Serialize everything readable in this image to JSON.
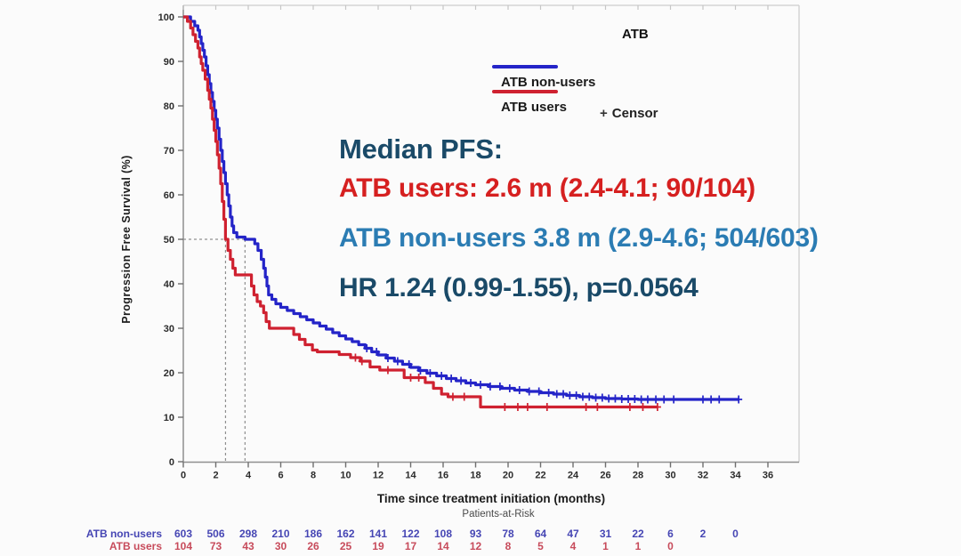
{
  "chart_data": {
    "type": "line",
    "subtype": "kaplan-meier-step",
    "title": "",
    "xlabel": "Time since treatment initiation (months)",
    "ylabel": "Progression Free Survival (%)",
    "xlim": [
      0,
      36
    ],
    "ylim": [
      0,
      100
    ],
    "xticks": [
      0,
      2,
      4,
      6,
      8,
      10,
      12,
      14,
      16,
      18,
      20,
      22,
      24,
      26,
      28,
      30,
      32,
      34,
      36
    ],
    "yticks": [
      0,
      10,
      20,
      30,
      40,
      50,
      60,
      70,
      80,
      90,
      100
    ],
    "grid": false,
    "legend_position": "top-right",
    "median_lines": {
      "y": 50,
      "x": [
        2.6,
        3.8
      ],
      "style": "dashed",
      "color": "#8f8f8f"
    },
    "series": [
      {
        "name": "ATB non-users",
        "color": "#2424c8",
        "points": [
          [
            0,
            100
          ],
          [
            0.45,
            99
          ],
          [
            0.7,
            98
          ],
          [
            0.9,
            97
          ],
          [
            1.0,
            95.5
          ],
          [
            1.1,
            94
          ],
          [
            1.2,
            92.5
          ],
          [
            1.3,
            91
          ],
          [
            1.4,
            89
          ],
          [
            1.5,
            87
          ],
          [
            1.6,
            85
          ],
          [
            1.7,
            83
          ],
          [
            1.8,
            81
          ],
          [
            1.9,
            79
          ],
          [
            2.0,
            77
          ],
          [
            2.1,
            75
          ],
          [
            2.2,
            72.5
          ],
          [
            2.3,
            70
          ],
          [
            2.4,
            67.5
          ],
          [
            2.5,
            65
          ],
          [
            2.6,
            62.5
          ],
          [
            2.7,
            60
          ],
          [
            2.8,
            57.5
          ],
          [
            2.9,
            55
          ],
          [
            3.0,
            53
          ],
          [
            3.1,
            51.5
          ],
          [
            3.3,
            50.5
          ],
          [
            3.8,
            50
          ],
          [
            4.4,
            49
          ],
          [
            4.6,
            47.5
          ],
          [
            4.8,
            45.5
          ],
          [
            4.95,
            43.5
          ],
          [
            5.05,
            41.5
          ],
          [
            5.15,
            39.5
          ],
          [
            5.25,
            37.5
          ],
          [
            5.45,
            36.5
          ],
          [
            5.7,
            35.5
          ],
          [
            6.0,
            34.7
          ],
          [
            6.4,
            34
          ],
          [
            6.8,
            33.3
          ],
          [
            7.2,
            32.6
          ],
          [
            7.6,
            31.9
          ],
          [
            8.0,
            31.2
          ],
          [
            8.4,
            30.5
          ],
          [
            8.8,
            29.8
          ],
          [
            9.2,
            29
          ],
          [
            9.6,
            28.3
          ],
          [
            10.0,
            27.6
          ],
          [
            10.4,
            27
          ],
          [
            10.8,
            26.3
          ],
          [
            11.2,
            25.5
          ],
          [
            11.6,
            24.7
          ],
          [
            12.0,
            24
          ],
          [
            12.5,
            23.3
          ],
          [
            13.0,
            22.6
          ],
          [
            13.5,
            21.9
          ],
          [
            14.0,
            21.2
          ],
          [
            14.5,
            20.5
          ],
          [
            15.0,
            19.9
          ],
          [
            15.6,
            19.3
          ],
          [
            16.2,
            18.7
          ],
          [
            16.8,
            18.2
          ],
          [
            17.4,
            17.7
          ],
          [
            18.0,
            17.3
          ],
          [
            18.8,
            16.9
          ],
          [
            19.6,
            16.5
          ],
          [
            20.4,
            16.1
          ],
          [
            21.2,
            15.8
          ],
          [
            22.0,
            15.5
          ],
          [
            22.8,
            15.2
          ],
          [
            23.6,
            14.9
          ],
          [
            24.4,
            14.6
          ],
          [
            25.2,
            14.4
          ],
          [
            26.0,
            14.2
          ],
          [
            27.0,
            14.1
          ],
          [
            28.0,
            14.0
          ],
          [
            34.2,
            14.0
          ]
        ],
        "censor_times": [
          11.3,
          11.9,
          12.6,
          13.2,
          13.9,
          14.6,
          15.2,
          15.9,
          16.5,
          17.1,
          17.7,
          18.3,
          18.9,
          19.5,
          20.1,
          20.7,
          21.3,
          21.9,
          22.5,
          23.0,
          23.4,
          23.8,
          24.2,
          24.6,
          25.0,
          25.4,
          25.8,
          26.2,
          26.6,
          27.0,
          27.4,
          27.8,
          28.2,
          28.6,
          29.1,
          29.6,
          30.2,
          32.0,
          32.5,
          33.0,
          34.2
        ]
      },
      {
        "name": "ATB users",
        "color": "#cf2130",
        "points": [
          [
            0,
            100
          ],
          [
            0.25,
            99
          ],
          [
            0.45,
            97.5
          ],
          [
            0.6,
            96
          ],
          [
            0.75,
            94.5
          ],
          [
            0.9,
            93
          ],
          [
            1.0,
            91
          ],
          [
            1.1,
            89.5
          ],
          [
            1.2,
            88
          ],
          [
            1.35,
            86
          ],
          [
            1.5,
            83.5
          ],
          [
            1.6,
            81.5
          ],
          [
            1.7,
            79.5
          ],
          [
            1.8,
            77
          ],
          [
            1.9,
            74.5
          ],
          [
            2.0,
            72
          ],
          [
            2.1,
            69
          ],
          [
            2.2,
            66
          ],
          [
            2.3,
            62.5
          ],
          [
            2.4,
            58.5
          ],
          [
            2.5,
            54.5
          ],
          [
            2.6,
            50
          ],
          [
            2.75,
            47.5
          ],
          [
            2.9,
            45.5
          ],
          [
            3.05,
            43.5
          ],
          [
            3.2,
            42
          ],
          [
            4.2,
            39.5
          ],
          [
            4.35,
            37.5
          ],
          [
            4.55,
            36
          ],
          [
            4.75,
            35
          ],
          [
            4.95,
            33.5
          ],
          [
            5.1,
            31.5
          ],
          [
            5.3,
            30
          ],
          [
            6.8,
            28.6
          ],
          [
            7.15,
            27.5
          ],
          [
            7.5,
            26.3
          ],
          [
            7.95,
            25.1
          ],
          [
            8.25,
            24.7
          ],
          [
            9.6,
            24.1
          ],
          [
            10.3,
            23.4
          ],
          [
            10.9,
            22.6
          ],
          [
            11.5,
            21.3
          ],
          [
            12.1,
            20.6
          ],
          [
            13.6,
            18.9
          ],
          [
            14.9,
            17.8
          ],
          [
            15.4,
            16.5
          ],
          [
            15.9,
            15.2
          ],
          [
            16.3,
            14.6
          ],
          [
            18.3,
            12.3
          ],
          [
            29.2,
            12.3
          ]
        ],
        "censor_times": [
          10.6,
          11.0,
          12.6,
          14.0,
          14.5,
          16.6,
          17.3,
          19.8,
          20.6,
          21.2,
          22.4,
          24.8,
          25.5,
          27.5,
          28.3,
          29.2
        ]
      }
    ]
  },
  "legend": {
    "title": "ATB",
    "items": [
      {
        "label": "ATB non-users",
        "color": "#2424c8"
      },
      {
        "label": "ATB users",
        "color": "#cf2130"
      }
    ],
    "censor_plus": "+",
    "censor_label": "Censor"
  },
  "annotations": {
    "median_label": {
      "text": "Median PFS:",
      "color": "#1a4a68"
    },
    "users_line": {
      "text": "ATB users: 2.6 m (2.4-4.1; 90/104)",
      "color": "#d62020"
    },
    "non_users_line": {
      "text": "ATB non-users 3.8 m (2.9-4.6; 504/603)",
      "color": "#2b7cb3"
    },
    "hr_line": {
      "text": "HR 1.24 (0.99-1.55), p=0.0564",
      "color": "#1a4a68"
    }
  },
  "axes": {
    "x_title": "Time since treatment initiation (months)",
    "y_title": "Progression Free Survival (%)"
  },
  "risk_table": {
    "title": "Patients-at-Risk",
    "rows": [
      {
        "label": "ATB non-users",
        "color": "#4646b4",
        "values": [
          603,
          506,
          298,
          210,
          186,
          162,
          141,
          122,
          108,
          93,
          78,
          64,
          47,
          31,
          22,
          6,
          2,
          0
        ]
      },
      {
        "label": "ATB users",
        "color": "#c74b5b",
        "values": [
          104,
          73,
          43,
          30,
          26,
          25,
          19,
          17,
          14,
          12,
          8,
          5,
          4,
          1,
          1,
          0
        ]
      }
    ]
  }
}
